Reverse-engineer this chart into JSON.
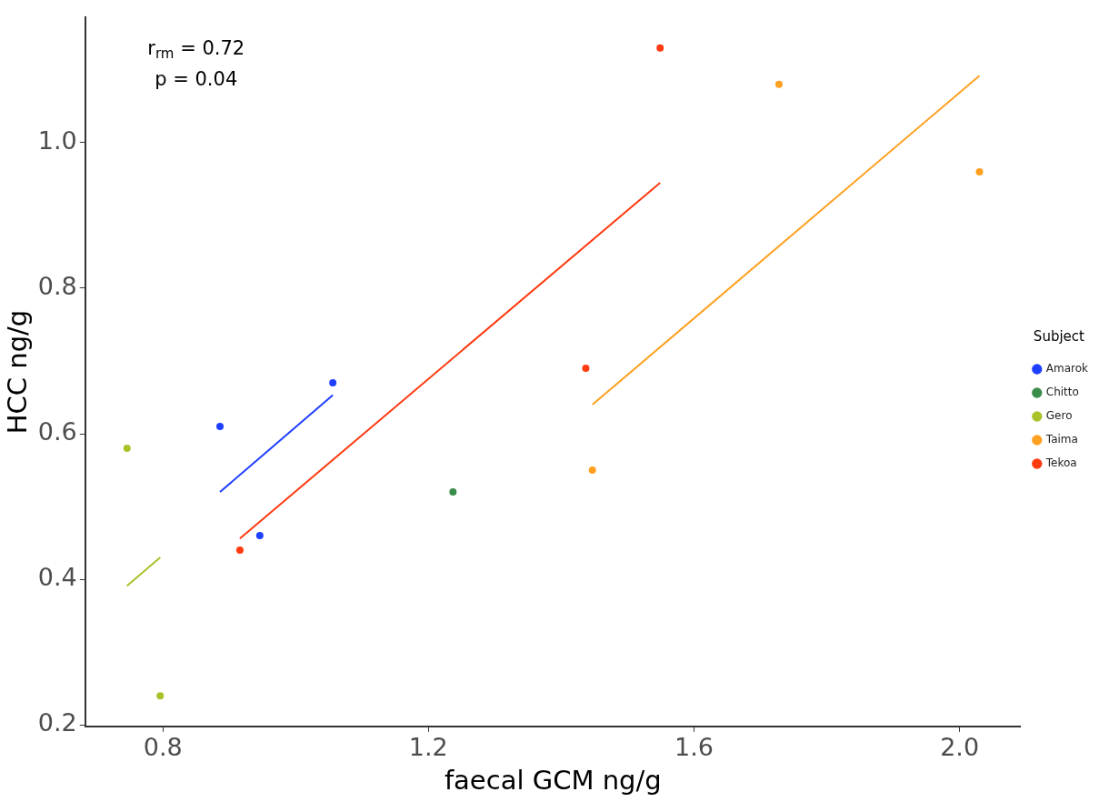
{
  "chart_data": {
    "type": "scatter",
    "xlabel": "faecal GCM ng/g",
    "ylabel": "HCC ng/g",
    "legend_title": "Subject",
    "legend": "right",
    "grid": false,
    "marker": "circle",
    "xlim": [
      0.683,
      2.092
    ],
    "xticks": [
      {
        "value": 0.8,
        "label": "0.8"
      },
      {
        "value": 1.2,
        "label": "1.2"
      },
      {
        "value": 1.6,
        "label": "1.6"
      },
      {
        "value": 2.0,
        "label": "2.0"
      }
    ],
    "ylim": [
      0.198,
      1.172
    ],
    "yticks": [
      {
        "value": 0.2,
        "label": "0.2"
      },
      {
        "value": 0.4,
        "label": "0.4"
      },
      {
        "value": 0.6,
        "label": "0.6"
      },
      {
        "value": 0.8,
        "label": "0.8"
      },
      {
        "value": 1.0,
        "label": "1.0"
      }
    ],
    "annotations": [
      "r$_{rm}$ = 0.72",
      "p = 0.04"
    ],
    "series": [
      {
        "name": "Amarok",
        "color": "#1f3fff",
        "x": [
          0.886,
          0.946,
          1.056
        ],
        "values": [
          0.61,
          0.46,
          0.67
        ]
      },
      {
        "name": "Chitto",
        "color": "#3a8c4a",
        "x": [
          1.237
        ],
        "values": [
          0.52
        ]
      },
      {
        "name": "Gero",
        "color": "#a8c22a",
        "x": [
          0.746,
          0.796
        ],
        "values": [
          0.58,
          0.24
        ]
      },
      {
        "name": "Taima",
        "color": "#ffa020",
        "x": [
          1.728,
          2.03,
          1.447
        ],
        "values": [
          1.08,
          0.96,
          0.55
        ]
      },
      {
        "name": "Tekoa",
        "color": "#ff3a10",
        "x": [
          1.549,
          1.437,
          0.916
        ],
        "values": [
          1.13,
          0.69,
          0.44
        ]
      },
      {
        "type": "line",
        "marker": "none",
        "color": "#1f3fff",
        "x": [
          0.886,
          1.056
        ],
        "values": [
          0.52,
          0.653
        ]
      },
      {
        "type": "line",
        "marker": "none",
        "color": "#a8c22a",
        "x": [
          0.746,
          0.796
        ],
        "values": [
          0.391,
          0.43
        ]
      },
      {
        "type": "line",
        "marker": "none",
        "color": "#ff3a10",
        "x": [
          0.916,
          1.549
        ],
        "values": [
          0.456,
          0.945
        ]
      },
      {
        "type": "line",
        "marker": "none",
        "color": "#ffa020",
        "x": [
          1.447,
          2.03
        ],
        "values": [
          0.64,
          1.092
        ]
      }
    ]
  }
}
